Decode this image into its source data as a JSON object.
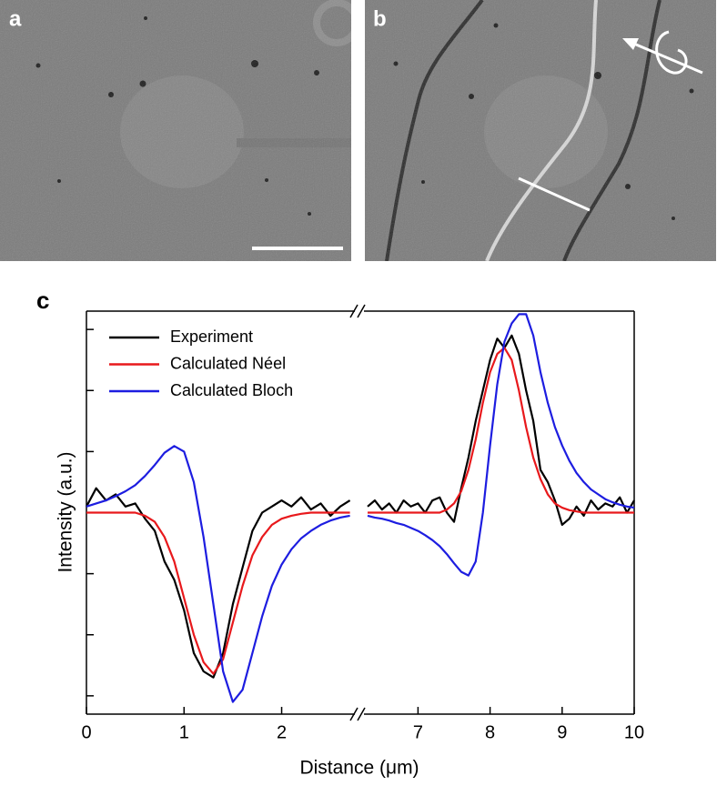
{
  "panel_labels": [
    "a",
    "b",
    "c"
  ],
  "chart_data": {
    "type": "line",
    "xlabel": "Distance (μm)",
    "ylabel": "Intensity (a.u.)",
    "legend": "upper left",
    "x": [
      0,
      0.1,
      0.2,
      0.3,
      0.4,
      0.5,
      0.6,
      0.7,
      0.8,
      0.9,
      1.0,
      1.1,
      1.2,
      1.3,
      1.4,
      1.5,
      1.6,
      1.7,
      1.8,
      1.9,
      2.0,
      2.1,
      2.2,
      2.3,
      2.4,
      2.5,
      2.6,
      2.7,
      6.3,
      6.4,
      6.5,
      6.6,
      6.7,
      6.8,
      6.9,
      7.0,
      7.1,
      7.2,
      7.3,
      7.4,
      7.5,
      7.6,
      7.7,
      7.8,
      7.9,
      8.0,
      8.1,
      8.2,
      8.3,
      8.4,
      8.5,
      8.6,
      8.7,
      8.8,
      8.9,
      9.0,
      9.1,
      9.2,
      9.3,
      9.4,
      9.5,
      9.6,
      9.7,
      9.8,
      9.9,
      10
    ],
    "x_segments": [
      {
        "xlim": [
          0,
          2.75
        ],
        "xticks": [
          0,
          1,
          2
        ]
      },
      {
        "xlim": [
          6.25,
          10
        ],
        "xticks": [
          7,
          8,
          9,
          10
        ]
      }
    ],
    "ylim": [
      -3.3,
      3.3
    ],
    "yticks": [
      -3,
      -2,
      -1,
      0,
      1,
      2,
      3
    ],
    "series": [
      {
        "name": "Experiment",
        "color": "#000000",
        "values": [
          0.1,
          0.4,
          0.2,
          0.3,
          0.1,
          0.15,
          -0.1,
          -0.3,
          -0.8,
          -1.1,
          -1.6,
          -2.3,
          -2.6,
          -2.7,
          -2.3,
          -1.5,
          -0.9,
          -0.3,
          0,
          0.1,
          0.2,
          0.1,
          0.25,
          0.05,
          0.15,
          -0.05,
          0.1,
          0.2,
          0.1,
          0.2,
          0.05,
          0.15,
          0,
          0.2,
          0.1,
          0.15,
          0,
          0.2,
          0.25,
          0,
          -0.15,
          0.4,
          0.9,
          1.5,
          2.0,
          2.5,
          2.85,
          2.7,
          2.9,
          2.6,
          2.0,
          1.5,
          0.7,
          0.5,
          0.2,
          -0.2,
          -0.1,
          0.1,
          -0.05,
          0.2,
          0.05,
          0.15,
          0.1,
          0.25,
          0,
          0.2
        ]
      },
      {
        "name": "Calculated Néel",
        "color": "#e8191c",
        "values": [
          0,
          0,
          0,
          0,
          0,
          0,
          -0.05,
          -0.15,
          -0.4,
          -0.8,
          -1.4,
          -2.0,
          -2.45,
          -2.64,
          -2.4,
          -1.8,
          -1.2,
          -0.7,
          -0.4,
          -0.2,
          -0.1,
          -0.05,
          -0.02,
          0,
          0,
          0,
          0,
          0,
          0,
          0,
          0,
          0,
          0,
          0,
          0,
          0,
          0,
          0,
          0,
          0.05,
          0.15,
          0.35,
          0.7,
          1.2,
          1.8,
          2.3,
          2.6,
          2.7,
          2.5,
          2.0,
          1.4,
          0.9,
          0.55,
          0.3,
          0.15,
          0.08,
          0.04,
          0.02,
          0,
          0,
          0,
          0,
          0,
          0,
          0,
          0
        ]
      },
      {
        "name": "Calculated Bloch",
        "color": "#1d1de0",
        "values": [
          0.1,
          0.15,
          0.2,
          0.27,
          0.35,
          0.45,
          0.6,
          0.78,
          0.98,
          1.09,
          1.0,
          0.5,
          -0.4,
          -1.5,
          -2.6,
          -3.1,
          -2.9,
          -2.3,
          -1.7,
          -1.2,
          -0.85,
          -0.6,
          -0.42,
          -0.3,
          -0.2,
          -0.13,
          -0.08,
          -0.05,
          -0.05,
          -0.08,
          -0.1,
          -0.13,
          -0.17,
          -0.2,
          -0.25,
          -0.3,
          -0.37,
          -0.45,
          -0.55,
          -0.68,
          -0.83,
          -0.97,
          -1.03,
          -0.8,
          0,
          1.1,
          2.1,
          2.8,
          3.1,
          3.25,
          3.25,
          2.9,
          2.3,
          1.8,
          1.4,
          1.1,
          0.85,
          0.65,
          0.5,
          0.38,
          0.3,
          0.22,
          0.17,
          0.13,
          0.1,
          0.08
        ]
      }
    ]
  }
}
